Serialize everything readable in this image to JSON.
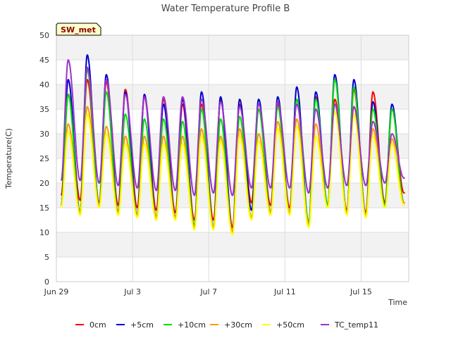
{
  "chart_data": {
    "type": "line",
    "title": "Water Temperature Profile B",
    "site_badge": "SW_met",
    "xlabel": "Time",
    "ylabel": "Temperature(C)",
    "ylim": [
      0,
      50
    ],
    "yticks": [
      0,
      5,
      10,
      15,
      20,
      25,
      30,
      35,
      40,
      45,
      50
    ],
    "xlim": [
      "2023-06-29",
      "2023-07-17T12:00"
    ],
    "xticks": [
      {
        "date": "2023-06-29",
        "label": "Jun 29"
      },
      {
        "date": "2023-07-03",
        "label": "Jul 3"
      },
      {
        "date": "2023-07-07",
        "label": "Jul 7"
      },
      {
        "date": "2023-07-11",
        "label": "Jul 11"
      },
      {
        "date": "2023-07-15",
        "label": "Jul 15"
      }
    ],
    "grid": true,
    "legend_position": "bottom",
    "series": [
      {
        "name": "0cm",
        "color": "#ff0000",
        "daily_min": [
          17.5,
          16.5,
          16.0,
          15.5,
          15.0,
          14.5,
          14.0,
          12.5,
          12.5,
          11.0,
          16.0,
          15.5,
          15.0,
          11.5,
          15.5,
          14.5,
          14.0,
          16.0,
          18.0
        ],
        "daily_max": [
          38.0,
          41.0,
          40.5,
          39.0,
          37.5,
          37.0,
          36.0,
          36.0,
          37.0,
          36.0,
          35.0,
          36.0,
          37.0,
          37.5,
          37.0,
          39.0,
          38.5,
          35.0,
          18.5
        ]
      },
      {
        "name": "+5cm",
        "color": "#0000cc",
        "daily_min": [
          15.5,
          14.0,
          15.5,
          14.0,
          13.5,
          13.0,
          13.0,
          11.0,
          11.0,
          10.0,
          14.5,
          14.0,
          14.0,
          12.0,
          15.5,
          14.0,
          13.5,
          15.5,
          16.0
        ],
        "daily_max": [
          41.0,
          46.0,
          42.0,
          38.5,
          38.0,
          36.0,
          37.0,
          38.5,
          37.5,
          37.0,
          37.0,
          37.5,
          39.5,
          38.5,
          42.0,
          41.0,
          36.5,
          36.0,
          16.0
        ]
      },
      {
        "name": "+10cm",
        "color": "#00dd00",
        "daily_min": [
          15.5,
          14.0,
          15.5,
          14.0,
          13.5,
          13.0,
          13.0,
          11.5,
          11.0,
          10.0,
          13.0,
          14.0,
          14.0,
          12.0,
          15.5,
          14.0,
          13.5,
          15.5,
          16.0
        ],
        "daily_max": [
          38.0,
          43.0,
          38.5,
          34.0,
          33.0,
          33.0,
          32.5,
          35.0,
          33.0,
          33.5,
          35.0,
          35.5,
          37.0,
          37.0,
          41.0,
          39.5,
          35.0,
          35.0,
          16.0
        ]
      },
      {
        "name": "+30cm",
        "color": "#ff9900",
        "daily_min": [
          15.5,
          14.0,
          15.5,
          14.0,
          13.5,
          13.0,
          13.0,
          11.0,
          11.0,
          10.0,
          13.0,
          14.0,
          14.0,
          11.5,
          15.0,
          14.0,
          13.5,
          15.0,
          16.0
        ],
        "daily_max": [
          32.0,
          35.5,
          31.5,
          29.5,
          29.5,
          29.5,
          29.5,
          31.0,
          29.5,
          31.0,
          30.0,
          32.5,
          33.0,
          32.0,
          36.0,
          35.5,
          31.0,
          29.0,
          16.0
        ]
      },
      {
        "name": "+50cm",
        "color": "#ffff00",
        "daily_min": [
          15.0,
          13.5,
          15.0,
          13.5,
          13.0,
          12.5,
          12.5,
          10.5,
          10.5,
          9.5,
          12.5,
          13.5,
          13.5,
          11.0,
          15.0,
          13.5,
          13.0,
          15.0,
          15.5
        ],
        "daily_max": [
          30.5,
          34.0,
          30.0,
          28.0,
          28.0,
          28.0,
          28.0,
          29.5,
          28.5,
          29.5,
          28.5,
          31.0,
          31.5,
          29.5,
          34.5,
          34.0,
          29.5,
          28.0,
          15.5
        ]
      },
      {
        "name": "TC_temp11",
        "color": "#9933cc",
        "daily_min": [
          20.5,
          20.5,
          20.0,
          19.5,
          19.0,
          18.5,
          18.5,
          17.5,
          18.0,
          17.5,
          19.0,
          19.0,
          19.0,
          18.0,
          19.0,
          19.5,
          19.5,
          20.0,
          21.0
        ],
        "daily_max": [
          45.0,
          43.5,
          41.0,
          38.0,
          37.5,
          37.5,
          37.5,
          37.0,
          36.5,
          35.5,
          36.0,
          36.5,
          36.0,
          35.0,
          36.0,
          35.5,
          32.5,
          30.0,
          21.0
        ]
      }
    ]
  }
}
